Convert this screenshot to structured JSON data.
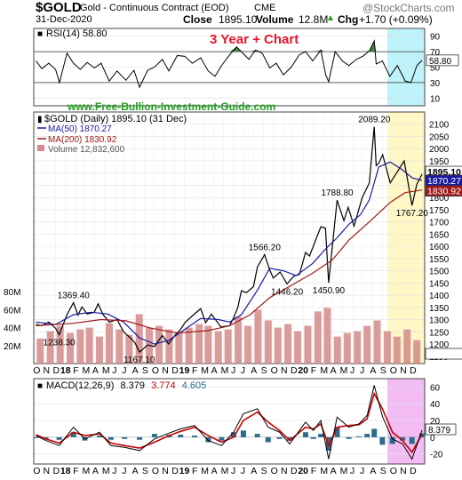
{
  "header": {
    "symbol": "$GOLD",
    "name": "Gold - Continuous Contract (EOD)",
    "exchange": "CME",
    "date": "31-Dec-2020",
    "watermark": "@StockCharts.com",
    "close_label": "Close",
    "close_value": "1895.10",
    "volume_label": "Volume",
    "volume_value": "12.8M",
    "chg_label": "Chg",
    "chg_value": "+1.70 (+0.09%)",
    "chg_arrow": "up-triangle-icon"
  },
  "overlay_title": "3 Year + Chart",
  "site_url": "www.Free-Bullion-Investment-Guide.com",
  "colors": {
    "price": "#000000",
    "ma50": "#1a1aa0",
    "ma200": "#a01818",
    "volume": "#d48a8a",
    "macd": "#000000",
    "signal": "#cc0000",
    "histogram": "#2a6c8c",
    "title_red": "#e8162a",
    "url_green": "#1ea01e",
    "cyan_band": "#bff3fb",
    "yellow_band": "#fff8c4",
    "magenta_band": "#f4bcf4"
  },
  "chart_data": [
    {
      "type": "line",
      "panel": "RSI",
      "legend": "RSI(14) 58.80",
      "value_label": "58.80",
      "ylim": [
        0,
        100
      ],
      "ticks": [
        "90",
        "70",
        "50",
        "30",
        "10"
      ],
      "ref_lines": [
        70,
        30
      ],
      "series": [
        {
          "name": "RSI(14)",
          "x": [
            "2017-10-02",
            "2017-10-20",
            "2017-11-10",
            "2017-12-01",
            "2017-12-13",
            "2018-01-05",
            "2018-01-25",
            "2018-02-15",
            "2018-03-08",
            "2018-03-30",
            "2018-04-20",
            "2018-05-15",
            "2018-06-08",
            "2018-07-05",
            "2018-07-30",
            "2018-08-16",
            "2018-09-10",
            "2018-10-01",
            "2018-10-25",
            "2018-11-14",
            "2018-12-10",
            "2019-01-02",
            "2019-01-25",
            "2019-02-20",
            "2019-03-15",
            "2019-04-05",
            "2019-04-25",
            "2019-05-20",
            "2019-06-10",
            "2019-06-25",
            "2019-07-18",
            "2019-08-07",
            "2019-08-28",
            "2019-09-20",
            "2019-10-10",
            "2019-11-01",
            "2019-11-25",
            "2019-12-20",
            "2020-01-08",
            "2020-01-30",
            "2020-02-24",
            "2020-03-10",
            "2020-03-19",
            "2020-04-08",
            "2020-04-30",
            "2020-05-20",
            "2020-06-12",
            "2020-07-02",
            "2020-07-22",
            "2020-08-06",
            "2020-08-12",
            "2020-08-31",
            "2020-09-23",
            "2020-10-16",
            "2020-11-09",
            "2020-11-27",
            "2020-12-15",
            "2020-12-31"
          ],
          "values": [
            58,
            48,
            55,
            47,
            30,
            68,
            55,
            47,
            56,
            49,
            55,
            32,
            45,
            33,
            46,
            24,
            46,
            50,
            60,
            45,
            65,
            64,
            55,
            62,
            45,
            38,
            52,
            66,
            76,
            70,
            60,
            72,
            68,
            49,
            55,
            40,
            50,
            66,
            70,
            58,
            72,
            40,
            31,
            70,
            58,
            52,
            60,
            64,
            71,
            84,
            54,
            58,
            38,
            52,
            32,
            30,
            52,
            58.8
          ]
        }
      ]
    },
    {
      "type": "line",
      "panel": "Price",
      "title": "$GOLD (Daily) 1895.10 (31 Dec)",
      "legend": [
        "$GOLD (Daily) 1895.10 (31 Dec)",
        "MA(50) 1870.27",
        "MA(200) 1830.92",
        "Volume 12,832,600"
      ],
      "ylim": [
        1120,
        2150
      ],
      "y_ticks": [
        "2100",
        "2050",
        "2000",
        "1950",
        "1900",
        "1850",
        "1800",
        "1750",
        "1700",
        "1650",
        "1600",
        "1550",
        "1500",
        "1450",
        "1400",
        "1350",
        "1300",
        "1250",
        "1200",
        "1150"
      ],
      "value_labels": [
        "1895.10",
        "1870.27",
        "1830.92"
      ],
      "annotations": [
        {
          "x": "2018-01-25",
          "y": 1369.4,
          "text": "1369.40"
        },
        {
          "x": "2017-12-12",
          "y": 1238.3,
          "text": "1238.30"
        },
        {
          "x": "2018-08-16",
          "y": 1167.1,
          "text": "1167.10"
        },
        {
          "x": "2019-09-04",
          "y": 1566.2,
          "text": "1566.20"
        },
        {
          "x": "2019-11-12",
          "y": 1446.2,
          "text": "1446.20"
        },
        {
          "x": "2020-03-19",
          "y": 1450.9,
          "text": "1450.90"
        },
        {
          "x": "2020-04-14",
          "y": 1788.8,
          "text": "1788.80"
        },
        {
          "x": "2020-08-06",
          "y": 2089.2,
          "text": "2089.20"
        },
        {
          "x": "2020-11-30",
          "y": 1767.2,
          "text": "1767.20"
        }
      ],
      "series": [
        {
          "name": "$GOLD",
          "x": [
            "2017-10-02",
            "2017-10-20",
            "2017-11-10",
            "2017-12-01",
            "2017-12-12",
            "2018-01-05",
            "2018-01-25",
            "2018-02-08",
            "2018-02-20",
            "2018-03-08",
            "2018-03-30",
            "2018-04-11",
            "2018-04-25",
            "2018-05-15",
            "2018-06-08",
            "2018-06-28",
            "2018-07-19",
            "2018-08-02",
            "2018-08-16",
            "2018-09-10",
            "2018-10-01",
            "2018-10-25",
            "2018-11-13",
            "2018-12-03",
            "2018-12-20",
            "2019-01-04",
            "2019-01-31",
            "2019-02-20",
            "2019-03-07",
            "2019-03-25",
            "2019-04-23",
            "2019-05-20",
            "2019-05-31",
            "2019-06-14",
            "2019-06-25",
            "2019-07-10",
            "2019-08-01",
            "2019-08-13",
            "2019-09-04",
            "2019-09-20",
            "2019-10-01",
            "2019-10-22",
            "2019-11-12",
            "2019-12-03",
            "2019-12-20",
            "2020-01-08",
            "2020-01-20",
            "2020-02-24",
            "2020-03-09",
            "2020-03-19",
            "2020-04-14",
            "2020-05-05",
            "2020-05-18",
            "2020-06-05",
            "2020-06-30",
            "2020-07-22",
            "2020-08-06",
            "2020-08-12",
            "2020-08-20",
            "2020-09-01",
            "2020-09-24",
            "2020-10-16",
            "2020-11-06",
            "2020-11-16",
            "2020-11-30",
            "2020-12-15",
            "2020-12-31"
          ],
          "values": [
            1280,
            1275,
            1290,
            1265,
            1238.3,
            1320,
            1369.4,
            1318,
            1352,
            1323,
            1330,
            1365,
            1322,
            1290,
            1300,
            1250,
            1225,
            1205,
            1167.1,
            1196,
            1190,
            1235,
            1200,
            1236,
            1260,
            1290,
            1322,
            1345,
            1287,
            1322,
            1270,
            1275,
            1305,
            1350,
            1418,
            1410,
            1435,
            1515,
            1566.2,
            1503,
            1470,
            1495,
            1446.2,
            1478,
            1485,
            1575,
            1560,
            1680,
            1675,
            1450.9,
            1788.8,
            1705,
            1760,
            1683,
            1800,
            1860,
            2089.2,
            1930,
            1940,
            1975,
            1860,
            1905,
            1950,
            1875,
            1767.2,
            1855,
            1895.1
          ]
        },
        {
          "name": "MA(50)",
          "x": [
            "2017-10-02",
            "2017-12-01",
            "2018-01-25",
            "2018-03-20",
            "2018-05-10",
            "2018-06-28",
            "2018-08-16",
            "2018-10-01",
            "2018-11-14",
            "2019-01-02",
            "2019-02-20",
            "2019-04-15",
            "2019-05-20",
            "2019-06-25",
            "2019-08-13",
            "2019-09-20",
            "2019-11-01",
            "2019-12-10",
            "2020-01-30",
            "2020-03-10",
            "2020-04-14",
            "2020-05-20",
            "2020-06-25",
            "2020-07-22",
            "2020-08-20",
            "2020-09-24",
            "2020-10-30",
            "2020-12-01",
            "2020-12-31"
          ],
          "values": [
            1290,
            1280,
            1320,
            1330,
            1323,
            1290,
            1225,
            1200,
            1215,
            1260,
            1305,
            1300,
            1290,
            1320,
            1420,
            1510,
            1500,
            1480,
            1530,
            1590,
            1635,
            1690,
            1730,
            1790,
            1925,
            1945,
            1915,
            1880,
            1870.27
          ]
        },
        {
          "name": "MA(200)",
          "x": [
            "2017-10-02",
            "2018-01-25",
            "2018-04-20",
            "2018-07-05",
            "2018-09-20",
            "2018-12-10",
            "2019-03-15",
            "2019-05-20",
            "2019-07-22",
            "2019-09-20",
            "2019-11-25",
            "2020-01-30",
            "2020-03-31",
            "2020-05-20",
            "2020-07-22",
            "2020-09-24",
            "2020-11-09",
            "2020-12-31"
          ],
          "values": [
            1275,
            1285,
            1300,
            1295,
            1265,
            1245,
            1255,
            1275,
            1320,
            1390,
            1440,
            1490,
            1545,
            1625,
            1700,
            1780,
            1820,
            1830.92
          ]
        }
      ]
    },
    {
      "type": "bar",
      "panel": "Volume",
      "ylim": [
        0,
        90
      ],
      "y_ticks": [
        "80M",
        "60M",
        "40M",
        "20M"
      ],
      "series": [
        {
          "name": "Volume",
          "x": [
            "2017-10-15",
            "2017-11-15",
            "2017-12-15",
            "2018-01-15",
            "2018-02-15",
            "2018-03-15",
            "2018-04-15",
            "2018-05-15",
            "2018-06-15",
            "2018-07-15",
            "2018-08-15",
            "2018-09-15",
            "2018-10-15",
            "2018-11-15",
            "2018-12-15",
            "2019-01-15",
            "2019-02-15",
            "2019-03-15",
            "2019-04-15",
            "2019-05-15",
            "2019-06-15",
            "2019-07-15",
            "2019-08-15",
            "2019-09-15",
            "2019-10-15",
            "2019-11-15",
            "2019-12-15",
            "2020-01-15",
            "2020-02-15",
            "2020-03-15",
            "2020-04-15",
            "2020-05-15",
            "2020-06-15",
            "2020-07-15",
            "2020-08-15",
            "2020-09-15",
            "2020-10-15",
            "2020-11-15",
            "2020-12-15"
          ],
          "values": [
            28,
            36,
            42,
            34,
            38,
            40,
            30,
            45,
            38,
            32,
            55,
            40,
            42,
            38,
            35,
            40,
            44,
            42,
            36,
            38,
            52,
            42,
            60,
            48,
            40,
            44,
            36,
            42,
            58,
            62,
            30,
            34,
            36,
            42,
            48,
            36,
            30,
            38,
            26
          ]
        }
      ]
    },
    {
      "type": "line",
      "panel": "MACD",
      "legend": [
        "MACD(12,26,9)",
        "8.379",
        "3.774",
        "4.605"
      ],
      "value_label": "8.379",
      "ylim": [
        -32,
        70
      ],
      "y_ticks": [
        "60",
        "40",
        "20",
        "0",
        "-20"
      ],
      "series": [
        {
          "name": "MACD",
          "x": [
            "2017-10-02",
            "2017-11-01",
            "2017-12-12",
            "2018-01-25",
            "2018-03-01",
            "2018-04-15",
            "2018-05-20",
            "2018-07-01",
            "2018-08-16",
            "2018-10-01",
            "2018-11-15",
            "2018-12-20",
            "2019-02-01",
            "2019-03-15",
            "2019-04-25",
            "2019-06-01",
            "2019-07-01",
            "2019-08-13",
            "2019-09-15",
            "2019-10-20",
            "2019-11-20",
            "2020-01-08",
            "2020-02-01",
            "2020-02-24",
            "2020-03-19",
            "2020-04-14",
            "2020-05-20",
            "2020-06-20",
            "2020-07-15",
            "2020-08-06",
            "2020-08-31",
            "2020-10-01",
            "2020-11-01",
            "2020-11-30",
            "2020-12-31"
          ],
          "values": [
            2,
            -4,
            -10,
            12,
            -2,
            6,
            -10,
            -12,
            -16,
            -2,
            5,
            10,
            14,
            -4,
            -10,
            6,
            28,
            34,
            12,
            6,
            -8,
            18,
            8,
            20,
            -26,
            24,
            12,
            16,
            26,
            62,
            25,
            -2,
            -8,
            -26,
            8.379
          ]
        },
        {
          "name": "Signal",
          "x": [
            "2017-10-02",
            "2017-11-01",
            "2017-12-12",
            "2018-01-25",
            "2018-03-01",
            "2018-04-15",
            "2018-05-20",
            "2018-07-01",
            "2018-08-16",
            "2018-10-01",
            "2018-11-15",
            "2018-12-20",
            "2019-02-01",
            "2019-03-15",
            "2019-04-25",
            "2019-06-01",
            "2019-07-01",
            "2019-08-13",
            "2019-09-15",
            "2019-10-20",
            "2019-11-20",
            "2020-01-08",
            "2020-02-01",
            "2020-02-24",
            "2020-03-19",
            "2020-04-14",
            "2020-05-20",
            "2020-06-20",
            "2020-07-15",
            "2020-08-06",
            "2020-08-31",
            "2020-10-01",
            "2020-11-01",
            "2020-11-30",
            "2020-12-31"
          ],
          "values": [
            3,
            -2,
            -7,
            6,
            2,
            4,
            -7,
            -10,
            -13,
            -6,
            2,
            7,
            12,
            2,
            -6,
            0,
            20,
            30,
            18,
            8,
            -4,
            12,
            10,
            16,
            -10,
            12,
            14,
            15,
            22,
            52,
            34,
            6,
            -4,
            -18,
            3.774
          ]
        }
      ]
    }
  ],
  "x_axis": {
    "labels": [
      "O",
      "N",
      "D",
      "18",
      "F",
      "M",
      "A",
      "M",
      "J",
      "J",
      "A",
      "S",
      "O",
      "N",
      "D",
      "19",
      "F",
      "M",
      "A",
      "M",
      "J",
      "J",
      "A",
      "S",
      "O",
      "N",
      "D",
      "20",
      "F",
      "M",
      "A",
      "M",
      "J",
      "J",
      "A",
      "S",
      "O",
      "N",
      "D"
    ]
  }
}
